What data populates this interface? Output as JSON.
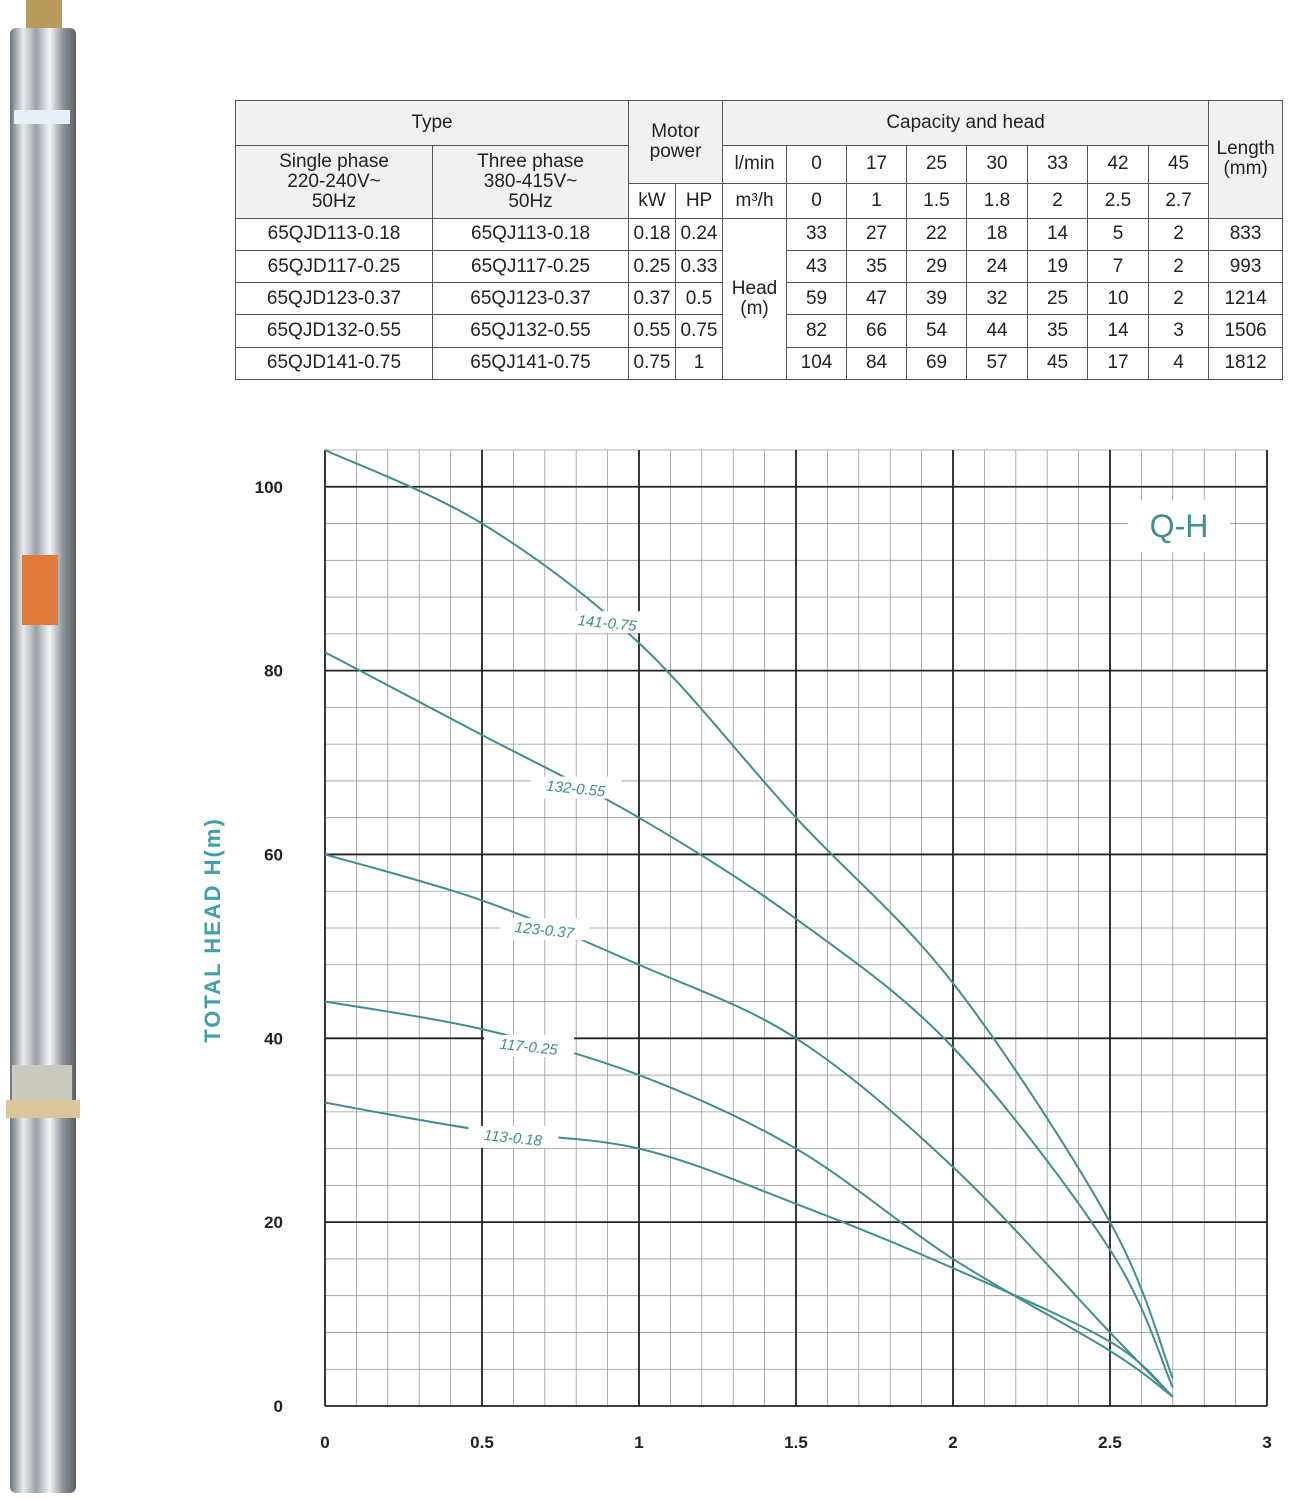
{
  "table": {
    "type_header": "Type",
    "motor_power": "Motor\npower",
    "capacity_header": "Capacity and head",
    "length_header": "Length\n(mm)",
    "single_phase": "Single phase\n220-240V~\n50Hz",
    "three_phase": "Three phase\n380-415V~\n50Hz",
    "flow_lmin_label": "l/min",
    "flow_lmin": [
      0,
      17,
      25,
      30,
      33,
      42,
      45
    ],
    "kw_label": "kW",
    "hp_label": "HP",
    "flow_m3h_label": "m³/h",
    "flow_m3h": [
      0,
      1,
      1.5,
      1.8,
      2,
      2.5,
      2.7
    ],
    "head_label": "Head\n(m)",
    "rows": [
      {
        "single": "65QJD113-0.18",
        "three": "65QJ113-0.18",
        "kw": 0.18,
        "hp": 0.24,
        "head": [
          33,
          27,
          22,
          18,
          14,
          5,
          2
        ],
        "length": 833
      },
      {
        "single": "65QJD117-0.25",
        "three": "65QJ117-0.25",
        "kw": 0.25,
        "hp": 0.33,
        "head": [
          43,
          35,
          29,
          24,
          19,
          7,
          2
        ],
        "length": 993
      },
      {
        "single": "65QJD123-0.37",
        "three": "65QJ123-0.37",
        "kw": 0.37,
        "hp": 0.5,
        "head": [
          59,
          47,
          39,
          32,
          25,
          10,
          2
        ],
        "length": 1214
      },
      {
        "single": "65QJD132-0.55",
        "three": "65QJ132-0.55",
        "kw": 0.55,
        "hp": 0.75,
        "head": [
          82,
          66,
          54,
          44,
          35,
          14,
          3
        ],
        "length": 1506
      },
      {
        "single": "65QJD141-0.75",
        "three": "65QJ141-0.75",
        "kw": 0.75,
        "hp": 1,
        "head": [
          104,
          84,
          69,
          57,
          45,
          17,
          4
        ],
        "length": 1812
      }
    ]
  },
  "chart_data": {
    "type": "line",
    "title": "Q-H",
    "y_label": "TOTAL HEAD H(m)",
    "x": [
      0,
      0.5,
      1,
      1.5,
      2,
      2.5,
      2.7
    ],
    "series": [
      {
        "name": "141-0.75",
        "color": "#3f8f90",
        "values": [
          104,
          96,
          83,
          64,
          46,
          20,
          3
        ]
      },
      {
        "name": "132-0.55",
        "color": "#3f8f90",
        "values": [
          82,
          73,
          64,
          53,
          39,
          17,
          2
        ]
      },
      {
        "name": "123-0.37",
        "color": "#3f8f90",
        "values": [
          60,
          55,
          48,
          40,
          26,
          8,
          1
        ]
      },
      {
        "name": "117-0.25",
        "color": "#3f8f90",
        "values": [
          44,
          41,
          36,
          28,
          16,
          6,
          1
        ]
      },
      {
        "name": "113-0.18",
        "color": "#3f8f90",
        "values": [
          33,
          30,
          28,
          22,
          15,
          7,
          1
        ]
      }
    ],
    "xlim": [
      0,
      3
    ],
    "ylim": [
      0,
      104
    ],
    "xticks": [
      0,
      0.5,
      1,
      1.5,
      2,
      2.5,
      3
    ],
    "yticks": [
      0,
      20,
      40,
      60,
      80,
      100
    ],
    "grid": true
  }
}
